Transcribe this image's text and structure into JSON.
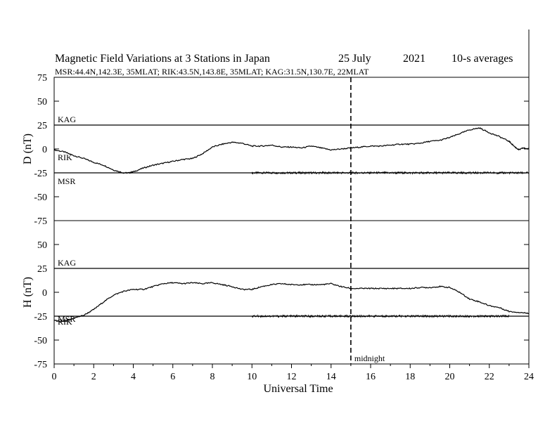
{
  "header": {
    "title": "Magnetic Field Variations at 3 Stations in Japan",
    "date": "25 July",
    "year": "2021",
    "averaging": "10-s averages",
    "stations": "MSR:44.4N,142.3E, 35MLAT;  RIK:43.5N,143.8E, 35MLAT;  KAG:31.5N,130.7E, 22MLAT"
  },
  "chart_data": {
    "type": "line",
    "xlabel": "Universal Time",
    "xlim": [
      0,
      24
    ],
    "xticks": [
      0,
      2,
      4,
      6,
      8,
      10,
      12,
      14,
      16,
      18,
      20,
      22,
      24
    ],
    "annotation": {
      "x": 15,
      "label": "midnight"
    },
    "panels": [
      {
        "ylabel": "D (nT)",
        "ylim": [
          -75,
          75
        ],
        "yticks": [
          75,
          50,
          25,
          0,
          -25,
          -50,
          -75
        ],
        "baselines": [
          {
            "name": "KAG",
            "y": 25
          },
          {
            "name": "RIK",
            "y": -3
          },
          {
            "name": "MSR",
            "y": -25
          }
        ],
        "series": [
          {
            "name": "RIK",
            "x": [
              0,
              0.5,
              1,
              1.5,
              2,
              2.5,
              3,
              3.5,
              3.8,
              4,
              4.5,
              5,
              5.5,
              6,
              6.5,
              7,
              7.5,
              8,
              8.5,
              9,
              9.5,
              10,
              10.5,
              11,
              11.5,
              12,
              12.5,
              13,
              13.5,
              14,
              14.5,
              15,
              15.5,
              16,
              16.5,
              17,
              17.5,
              18,
              18.5,
              19,
              19.5,
              20,
              20.5,
              21,
              21.5,
              22,
              22.5,
              23,
              23.3,
              23.5,
              23.7,
              24
            ],
            "y": [
              -1,
              -3,
              -7,
              -10,
              -14,
              -17,
              -22,
              -25,
              -25,
              -24,
              -20,
              -17,
              -15,
              -13,
              -11,
              -10,
              -5,
              2,
              5,
              7,
              6,
              3,
              3,
              4,
              2,
              2,
              1,
              3,
              1,
              -1,
              0,
              1,
              2,
              3,
              3,
              4,
              5,
              5,
              6,
              8,
              9,
              12,
              16,
              20,
              22,
              17,
              13,
              8,
              2,
              -1,
              1,
              0
            ]
          },
          {
            "name": "MSR",
            "x": [
              10,
              24
            ],
            "y": [
              -25,
              -25
            ]
          }
        ]
      },
      {
        "ylabel": "H (nT)",
        "ylim": [
          -75,
          75
        ],
        "yticks": [
          75,
          50,
          25,
          0,
          -25,
          -50,
          -75
        ],
        "baselines": [
          {
            "name": "KAG",
            "y": 25
          },
          {
            "name": "MSR",
            "y": -31
          },
          {
            "name": "RIK",
            "y": -34
          }
        ],
        "series": [
          {
            "name": "RIK",
            "x": [
              0,
              0.3,
              0.6,
              1,
              1.5,
              2,
              2.5,
              3,
              3.5,
              4,
              4.5,
              5,
              5.5,
              6,
              6.5,
              7,
              7.5,
              8,
              8.5,
              9,
              9.5,
              10,
              10.5,
              11,
              11.5,
              12,
              12.5,
              13,
              13.5,
              14,
              14.5,
              15,
              15.5,
              16,
              16.5,
              17,
              17.5,
              18,
              18.5,
              19,
              19.5,
              20,
              20.5,
              21,
              21.5,
              22,
              22.5,
              23,
              23.5,
              24
            ],
            "y": [
              -29,
              -31,
              -30,
              -27,
              -24,
              -18,
              -10,
              -3,
              1,
              3,
              3,
              6,
              9,
              10,
              9,
              10,
              9,
              10,
              8,
              6,
              3,
              3,
              6,
              8,
              9,
              8,
              8,
              8,
              8,
              9,
              6,
              4,
              4,
              4,
              4,
              4,
              4,
              4,
              5,
              5,
              6,
              5,
              0,
              -7,
              -10,
              -14,
              -16,
              -20,
              -21,
              -22
            ]
          },
          {
            "name": "MSR",
            "x": [
              10,
              23
            ],
            "y": [
              -25,
              -25
            ]
          }
        ]
      }
    ]
  }
}
